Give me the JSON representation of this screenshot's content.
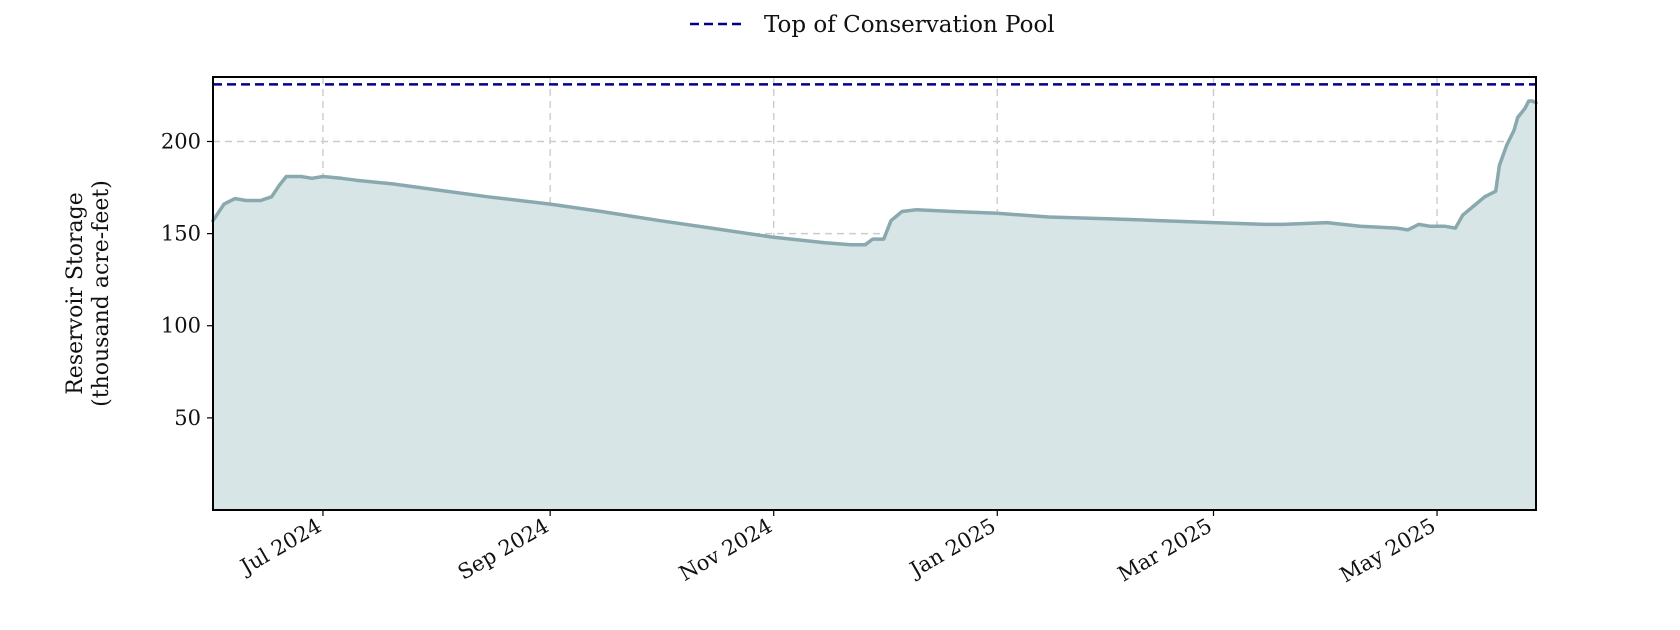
{
  "chart_data": {
    "type": "area",
    "title": "",
    "xlabel": "",
    "ylabel_lines": [
      "Reservoir Storage",
      "(thousand acre-feet)"
    ],
    "ylim": [
      0,
      235
    ],
    "xlim": [
      "2024-06-01",
      "2025-05-28"
    ],
    "grid": true,
    "legend": {
      "placement": "top-center",
      "entries": [
        {
          "label": "Top of Conservation Pool"
        }
      ]
    },
    "x_ticks": [
      {
        "date": "2024-07-01",
        "label": "Jul 2024"
      },
      {
        "date": "2024-09-01",
        "label": "Sep 2024"
      },
      {
        "date": "2024-11-01",
        "label": "Nov 2024"
      },
      {
        "date": "2025-01-01",
        "label": "Jan 2025"
      },
      {
        "date": "2025-03-01",
        "label": "Mar 2025"
      },
      {
        "date": "2025-05-01",
        "label": "May 2025"
      }
    ],
    "y_ticks": [
      {
        "value": 50,
        "label": "50"
      },
      {
        "value": 100,
        "label": "100"
      },
      {
        "value": 150,
        "label": "150"
      },
      {
        "value": 200,
        "label": "200"
      }
    ],
    "reference_line": {
      "name": "Top of Conservation Pool",
      "value": 231,
      "color": "#00008b",
      "style": "dashed"
    },
    "series": [
      {
        "line_color": "#8aa9ae",
        "fill_color": "#d7e5e7",
        "points": [
          [
            "2024-06-01",
            157
          ],
          [
            "2024-06-04",
            166
          ],
          [
            "2024-06-07",
            169
          ],
          [
            "2024-06-10",
            168
          ],
          [
            "2024-06-14",
            168
          ],
          [
            "2024-06-17",
            170
          ],
          [
            "2024-06-19",
            176
          ],
          [
            "2024-06-21",
            181
          ],
          [
            "2024-06-25",
            181
          ],
          [
            "2024-06-28",
            180
          ],
          [
            "2024-07-01",
            181
          ],
          [
            "2024-07-06",
            180
          ],
          [
            "2024-07-10",
            179
          ],
          [
            "2024-07-20",
            177
          ],
          [
            "2024-07-31",
            174
          ],
          [
            "2024-08-15",
            170
          ],
          [
            "2024-09-01",
            166
          ],
          [
            "2024-09-15",
            162
          ],
          [
            "2024-10-01",
            157
          ],
          [
            "2024-10-15",
            153
          ],
          [
            "2024-11-01",
            148
          ],
          [
            "2024-11-15",
            145
          ],
          [
            "2024-11-22",
            144
          ],
          [
            "2024-11-26",
            144
          ],
          [
            "2024-11-28",
            147
          ],
          [
            "2024-12-01",
            147
          ],
          [
            "2024-12-03",
            157
          ],
          [
            "2024-12-06",
            162
          ],
          [
            "2024-12-10",
            163
          ],
          [
            "2024-12-20",
            162
          ],
          [
            "2025-01-01",
            161
          ],
          [
            "2025-01-15",
            159
          ],
          [
            "2025-02-01",
            158
          ],
          [
            "2025-02-15",
            157
          ],
          [
            "2025-03-01",
            156
          ],
          [
            "2025-03-15",
            155
          ],
          [
            "2025-03-20",
            155
          ],
          [
            "2025-04-01",
            156
          ],
          [
            "2025-04-10",
            154
          ],
          [
            "2025-04-20",
            153
          ],
          [
            "2025-04-23",
            152
          ],
          [
            "2025-04-26",
            155
          ],
          [
            "2025-04-29",
            154
          ],
          [
            "2025-05-03",
            154
          ],
          [
            "2025-05-06",
            153
          ],
          [
            "2025-05-08",
            160
          ],
          [
            "2025-05-11",
            165
          ],
          [
            "2025-05-14",
            170
          ],
          [
            "2025-05-17",
            173
          ],
          [
            "2025-05-18",
            187
          ],
          [
            "2025-05-20",
            198
          ],
          [
            "2025-05-22",
            206
          ],
          [
            "2025-05-23",
            213
          ],
          [
            "2025-05-25",
            218
          ],
          [
            "2025-05-26",
            222
          ],
          [
            "2025-05-27",
            222
          ],
          [
            "2025-05-28",
            221
          ]
        ]
      }
    ]
  }
}
